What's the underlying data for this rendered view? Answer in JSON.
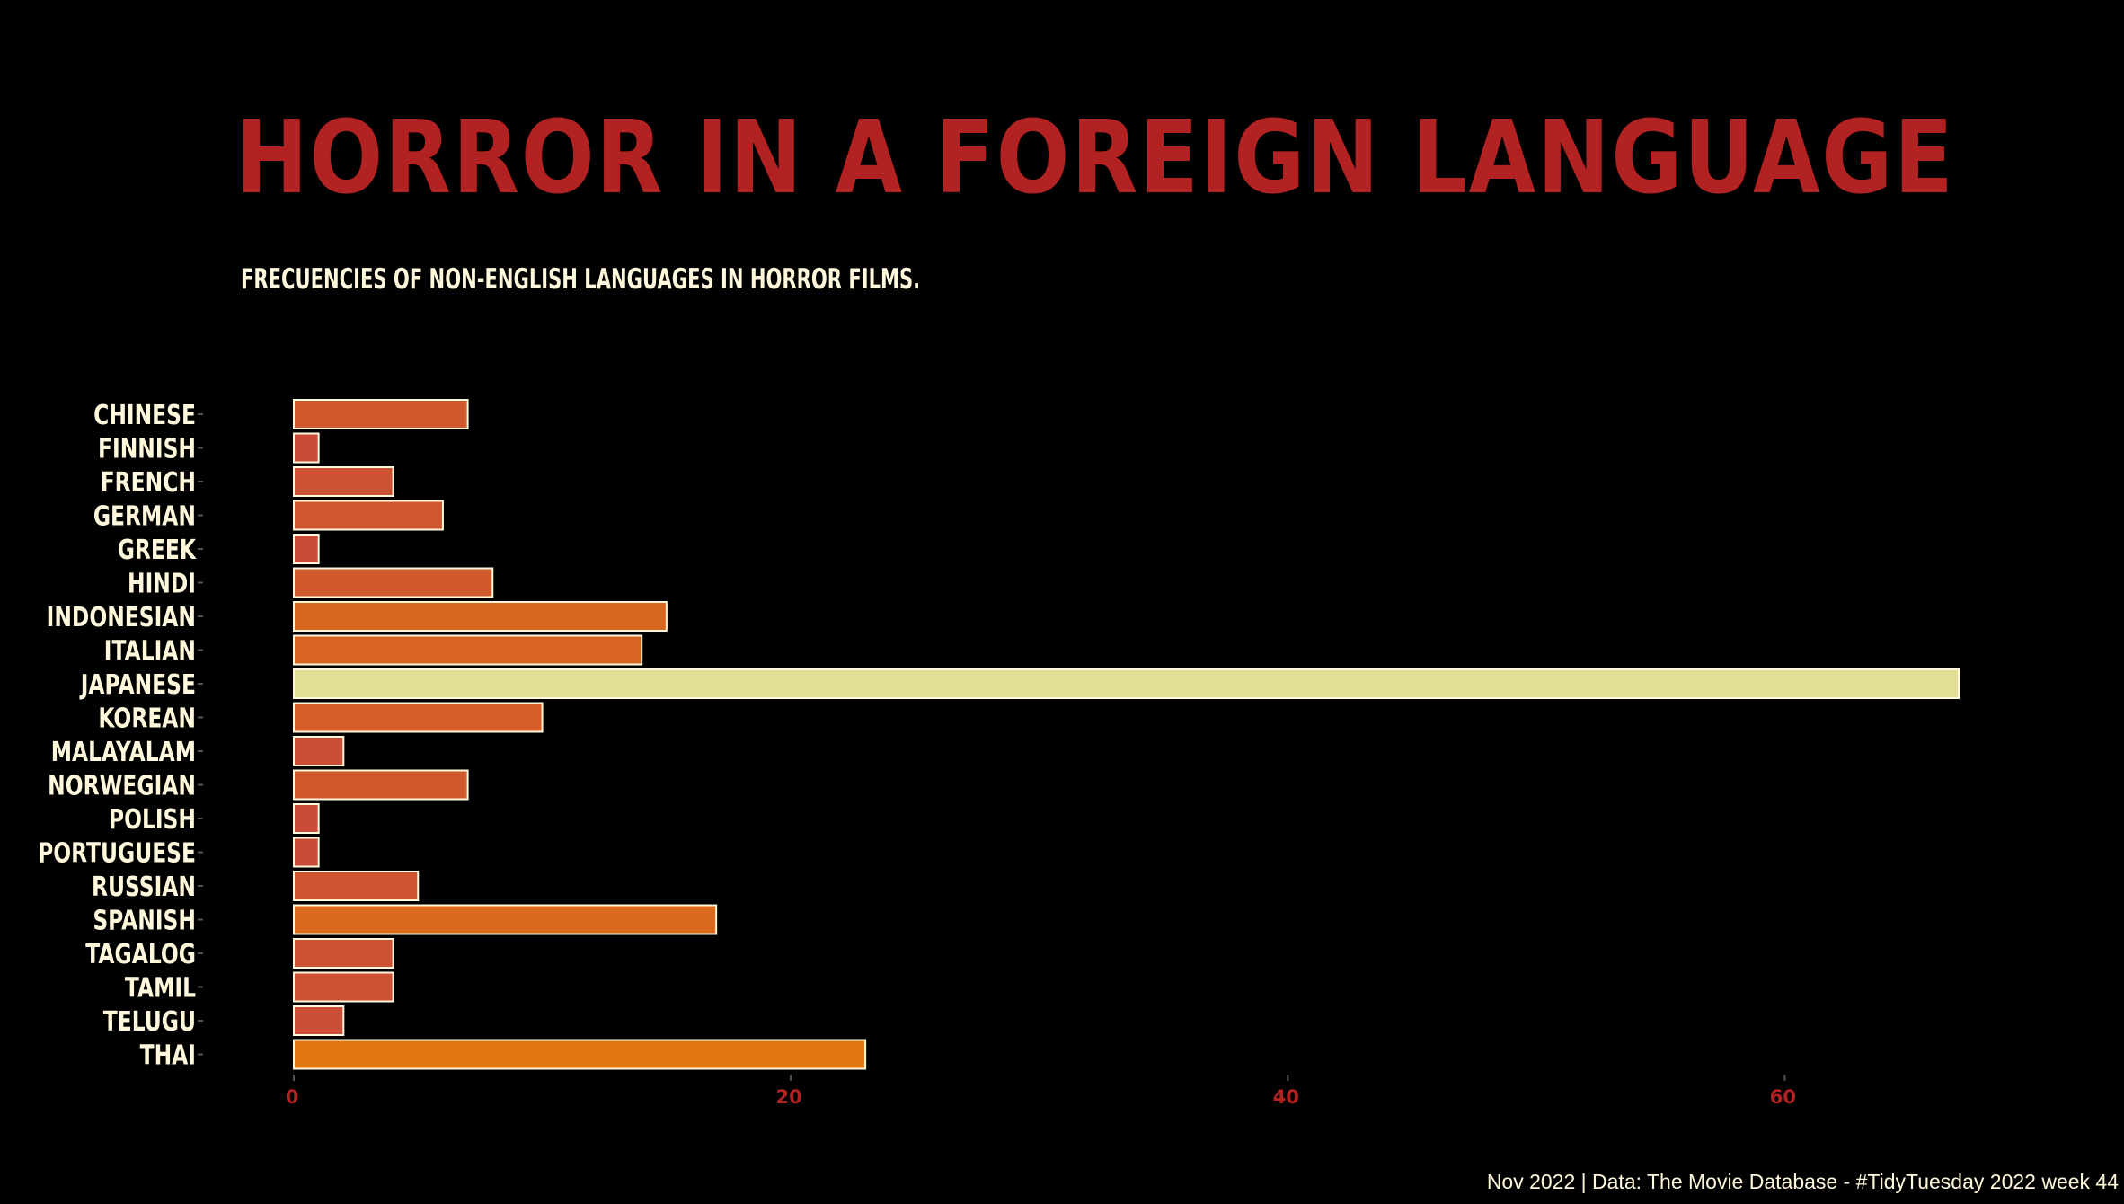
{
  "chart_data": {
    "type": "bar",
    "orientation": "horizontal",
    "title": "Horror in a foreign language",
    "subtitle": "Frecuencies of non-English languages in horror films.",
    "caption": "Nov 2022 | Data: The Movie Database - #TidyTuesday 2022 week 44",
    "xlabel": "",
    "ylabel": "",
    "categories": [
      "CHINESE",
      "FINNISH",
      "FRENCH",
      "GERMAN",
      "GREEK",
      "HINDI",
      "INDONESIAN",
      "ITALIAN",
      "JAPANESE",
      "KOREAN",
      "MALAYALAM",
      "NORWEGIAN",
      "POLISH",
      "PORTUGUESE",
      "RUSSIAN",
      "SPANISH",
      "TAGALOG",
      "TAMIL",
      "TELUGU",
      "THAI"
    ],
    "values": [
      7,
      1,
      4,
      6,
      1,
      8,
      15,
      14,
      67,
      10,
      2,
      7,
      1,
      1,
      5,
      17,
      4,
      4,
      2,
      23
    ],
    "xlim": [
      0,
      67
    ],
    "xticks": [
      0,
      20,
      40,
      60
    ],
    "grid": false,
    "legend": "none",
    "color_scale": {
      "low": "#C94A3A",
      "mid": "#E07810",
      "high": "#DFDF95"
    }
  },
  "colors": {
    "background": "#000000",
    "title": "#B22222",
    "text": "#FFF8DC",
    "tick_label": "#B22222",
    "bar_outline": "#FFF8DC"
  }
}
